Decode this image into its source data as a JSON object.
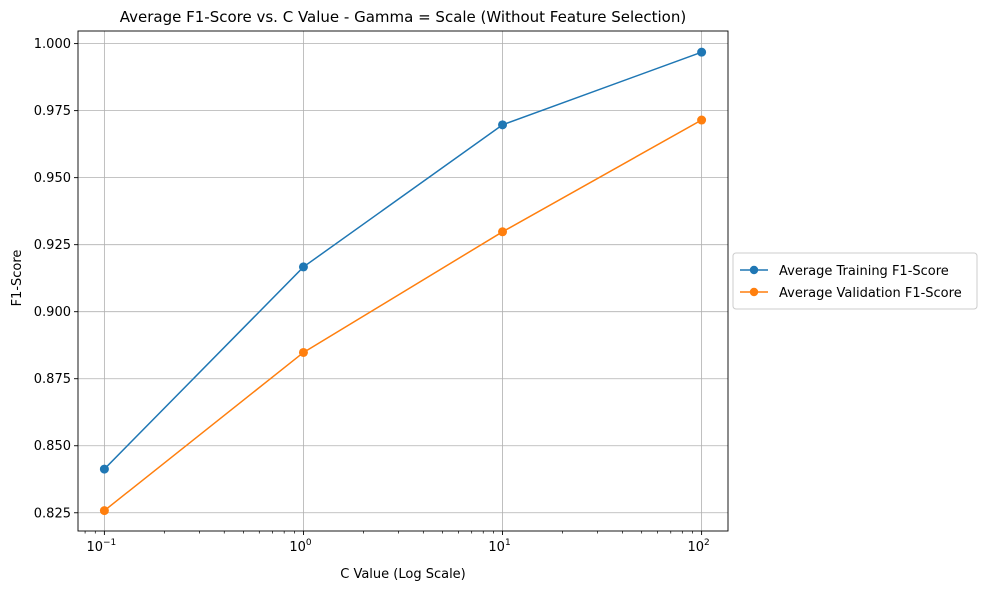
{
  "chart_data": {
    "type": "line",
    "title": "Average F1-Score vs. C Value - Gamma = Scale (Without Feature Selection)",
    "xlabel": "C Value (Log Scale)",
    "ylabel": "F1-Score",
    "x_scale": "log",
    "x": [
      0.1,
      1,
      10,
      100
    ],
    "x_ticks": [
      {
        "value": 0.1,
        "base": "10",
        "exp": "−1"
      },
      {
        "value": 1,
        "base": "10",
        "exp": "0"
      },
      {
        "value": 10,
        "base": "10",
        "exp": "1"
      },
      {
        "value": 100,
        "base": "10",
        "exp": "2"
      }
    ],
    "xlim": [
      0.0737,
      135.7
    ],
    "ylim": [
      0.8182,
      1.0047
    ],
    "y_ticks": [
      "0.825",
      "0.850",
      "0.875",
      "0.900",
      "0.925",
      "0.950",
      "0.975",
      "1.000"
    ],
    "grid": true,
    "legend_position": "center-right-outside",
    "series": [
      {
        "name": "Average Training F1-Score",
        "color": "#1f77b4",
        "values": [
          0.8413,
          0.9167,
          0.9697,
          0.9968
        ]
      },
      {
        "name": "Average Validation F1-Score",
        "color": "#ff7f0e",
        "values": [
          0.8258,
          0.8848,
          0.9298,
          0.9715
        ]
      }
    ]
  }
}
